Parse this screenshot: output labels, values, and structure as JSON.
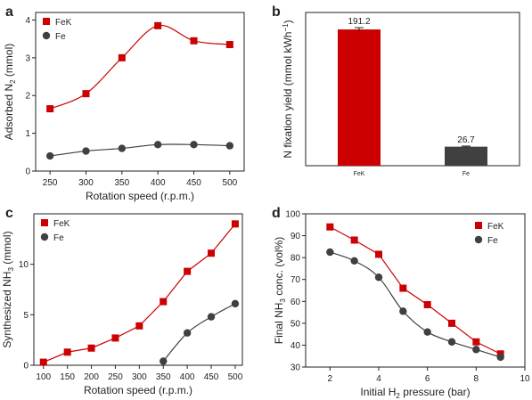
{
  "chart_data": [
    {
      "panel": "a",
      "type": "line",
      "xlabel": "Rotation speed (r.p.m.)",
      "ylabel_parts": [
        "Adsorbed N",
        "2",
        " (mmol)"
      ],
      "xlim": [
        230,
        520
      ],
      "ylim": [
        0,
        4.2
      ],
      "xticks": [
        250,
        300,
        350,
        400,
        450,
        500
      ],
      "yticks": [
        0,
        1,
        2,
        3,
        4
      ],
      "legend_position": "top-left",
      "series": [
        {
          "name": "FeK",
          "color": "#cc0000",
          "marker": "square",
          "smooth": true,
          "x": [
            250,
            300,
            350,
            400,
            450,
            500
          ],
          "y": [
            1.65,
            2.05,
            3.0,
            3.85,
            3.45,
            3.35
          ]
        },
        {
          "name": "Fe",
          "color": "#404040",
          "marker": "circle",
          "smooth": true,
          "x": [
            250,
            300,
            350,
            400,
            450,
            500
          ],
          "y": [
            0.4,
            0.53,
            0.6,
            0.7,
            0.7,
            0.67
          ]
        }
      ]
    },
    {
      "panel": "b",
      "type": "bar",
      "ylabel_parts": [
        "N fixation yield (mmol kWh",
        "−1",
        ")"
      ],
      "ylim": [
        0,
        215
      ],
      "categories": [
        "FeK",
        "Fe"
      ],
      "values": [
        191.2,
        26.7
      ],
      "value_labels": [
        "191.2",
        "26.7"
      ],
      "colors": [
        "#cc0000",
        "#404040"
      ],
      "error": [
        2.5,
        0.8
      ]
    },
    {
      "panel": "c",
      "type": "line",
      "xlabel": "Rotation speed (r.p.m.)",
      "ylabel_parts": [
        "Synthesized NH",
        "3",
        " (mmol)"
      ],
      "xlim": [
        80,
        515
      ],
      "ylim": [
        0,
        15
      ],
      "xticks": [
        100,
        150,
        200,
        250,
        300,
        350,
        400,
        450,
        500
      ],
      "yticks": [
        0,
        5,
        10
      ],
      "legend_position": "top-left",
      "series": [
        {
          "name": "FeK",
          "color": "#cc0000",
          "marker": "square",
          "smooth": false,
          "x": [
            100,
            150,
            200,
            250,
            300,
            350,
            400,
            450,
            500
          ],
          "y": [
            0.3,
            1.3,
            1.7,
            2.7,
            3.9,
            6.3,
            9.3,
            11.1,
            14.0
          ]
        },
        {
          "name": "Fe",
          "color": "#404040",
          "marker": "circle",
          "smooth": true,
          "x": [
            350,
            400,
            450,
            500
          ],
          "y": [
            0.4,
            3.2,
            4.8,
            6.1
          ]
        }
      ]
    },
    {
      "panel": "d",
      "type": "line",
      "xlabel_parts": [
        "Initial H",
        "2",
        " pressure (bar)"
      ],
      "ylabel_parts": [
        "Final NH",
        "3",
        " conc. (vol%)"
      ],
      "xlim": [
        1,
        10
      ],
      "ylim": [
        30,
        100
      ],
      "xticks": [
        2,
        4,
        6,
        8,
        10
      ],
      "yticks": [
        30,
        40,
        50,
        60,
        70,
        80,
        90,
        100
      ],
      "legend_position": "top-right",
      "series": [
        {
          "name": "FeK",
          "color": "#cc0000",
          "marker": "square",
          "smooth": false,
          "x": [
            2,
            3,
            4,
            5,
            6,
            7,
            8,
            9
          ],
          "y": [
            94,
            88,
            81.5,
            66,
            58.5,
            50,
            41.5,
            36
          ]
        },
        {
          "name": "Fe",
          "color": "#404040",
          "marker": "circle",
          "smooth": true,
          "x": [
            2,
            3,
            4,
            5,
            6,
            7,
            8,
            9
          ],
          "y": [
            82.5,
            78.5,
            71,
            55.5,
            46,
            41.5,
            38,
            34.5
          ]
        }
      ]
    }
  ],
  "panels": {
    "a": {
      "letter": "a"
    },
    "b": {
      "letter": "b"
    },
    "c": {
      "letter": "c"
    },
    "d": {
      "letter": "d"
    }
  }
}
